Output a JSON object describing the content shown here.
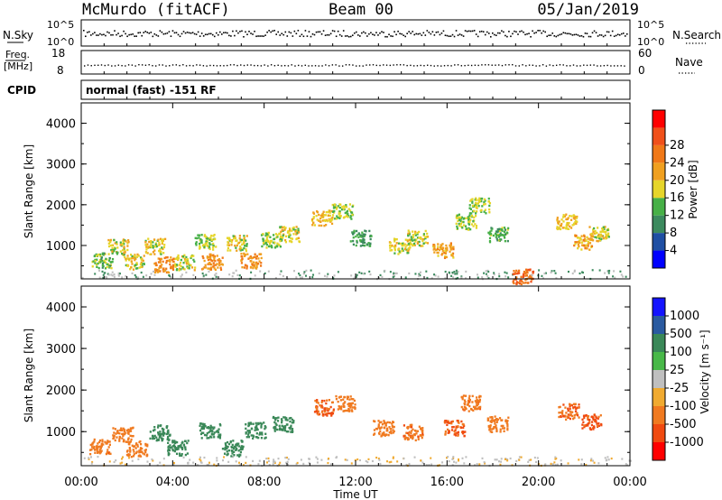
{
  "header": {
    "station": "McMurdo (fitACF)",
    "beam": "Beam 00",
    "date": "05/Jan/2019"
  },
  "strips": {
    "nsky_label": "N.Sky",
    "nsky_ticks": [
      "10^5",
      "10^0"
    ],
    "nsearch_label": "N.Search",
    "nsearch_ticks": [
      "10^5",
      "10^0"
    ],
    "freq_label": "Freq.",
    "freq_unit": "[MHz]",
    "freq_ticks": [
      "18",
      "8"
    ],
    "nave_label": "Nave",
    "nave_ticks": [
      "60",
      "0"
    ],
    "cpid_label": "CPID",
    "cpid_text": "normal (fast) -151 RF"
  },
  "colors": {
    "power": [
      "#0000ff",
      "#1f4fa3",
      "#3c8a5e",
      "#47b047",
      "#e6d52a",
      "#f0a020",
      "#f07818",
      "#f0501a",
      "#ff0000"
    ],
    "velocity": [
      "#ff0000",
      "#f04a10",
      "#f07a20",
      "#f0aa30",
      "#bfbfbf",
      "#48b848",
      "#3a8858",
      "#2a5aa0",
      "#1414ff"
    ],
    "ground": "#bfbfbf"
  },
  "chart_data": [
    {
      "type": "heatmap",
      "title": "",
      "xlabel": "",
      "ylabel": "Slant Range [km]",
      "xlim": [
        0,
        24
      ],
      "ylim": [
        180,
        4500
      ],
      "y_ticks": [
        "1000",
        "2000",
        "3000",
        "4000"
      ],
      "colorbar": {
        "label": "Power [dB]",
        "range": [
          0,
          30
        ],
        "ticks": [
          "4",
          "8",
          "12",
          "16",
          "20",
          "24",
          "28"
        ]
      },
      "echo_regions": [
        {
          "t": 0.9,
          "r": 650,
          "value": 14
        },
        {
          "t": 1.6,
          "r": 980,
          "value": 18
        },
        {
          "t": 2.3,
          "r": 620,
          "value": 18
        },
        {
          "t": 3.2,
          "r": 1000,
          "value": 18
        },
        {
          "t": 3.6,
          "r": 550,
          "value": 24
        },
        {
          "t": 4.5,
          "r": 600,
          "value": 18
        },
        {
          "t": 5.4,
          "r": 1100,
          "value": 16
        },
        {
          "t": 5.7,
          "r": 620,
          "value": 24
        },
        {
          "t": 6.8,
          "r": 1080,
          "value": 18
        },
        {
          "t": 7.4,
          "r": 640,
          "value": 24
        },
        {
          "t": 8.3,
          "r": 1150,
          "value": 16
        },
        {
          "t": 9.1,
          "r": 1300,
          "value": 18
        },
        {
          "t": 10.5,
          "r": 1700,
          "value": 20
        },
        {
          "t": 11.4,
          "r": 1850,
          "value": 16
        },
        {
          "t": 12.2,
          "r": 1200,
          "value": 12
        },
        {
          "t": 13.9,
          "r": 1000,
          "value": 18
        },
        {
          "t": 14.7,
          "r": 1200,
          "value": 18
        },
        {
          "t": 15.8,
          "r": 900,
          "value": 22
        },
        {
          "t": 16.8,
          "r": 1600,
          "value": 16
        },
        {
          "t": 17.4,
          "r": 2000,
          "value": 16
        },
        {
          "t": 18.2,
          "r": 1300,
          "value": 14
        },
        {
          "t": 21.2,
          "r": 1600,
          "value": 20
        },
        {
          "t": 21.9,
          "r": 1100,
          "value": 22
        },
        {
          "t": 22.6,
          "r": 1300,
          "value": 18
        },
        {
          "t": 19.3,
          "r": 260,
          "value": 28
        }
      ]
    },
    {
      "type": "heatmap",
      "title": "",
      "xlabel": "Time UT",
      "ylabel": "Slant Range [km]",
      "xlim": [
        0,
        24
      ],
      "ylim": [
        180,
        4500
      ],
      "x_ticks": [
        "00:00",
        "04:00",
        "08:00",
        "12:00",
        "16:00",
        "20:00",
        "00:00"
      ],
      "y_ticks": [
        "1000",
        "2000",
        "3000",
        "4000"
      ],
      "colorbar": {
        "label": "Velocity [m s⁻¹]",
        "ticks": [
          "-1000",
          "-500",
          "-100",
          "-25",
          "25",
          "100",
          "500",
          "1000"
        ]
      },
      "echo_regions": [
        {
          "t": 0.8,
          "r": 650,
          "value": -400
        },
        {
          "t": 1.8,
          "r": 950,
          "value": -300
        },
        {
          "t": 2.4,
          "r": 600,
          "value": -200
        },
        {
          "t": 3.4,
          "r": 1000,
          "value": 200
        },
        {
          "t": 4.2,
          "r": 620,
          "value": 200
        },
        {
          "t": 5.6,
          "r": 1050,
          "value": 200
        },
        {
          "t": 6.6,
          "r": 620,
          "value": 200
        },
        {
          "t": 7.6,
          "r": 1050,
          "value": 200
        },
        {
          "t": 8.8,
          "r": 1200,
          "value": 200
        },
        {
          "t": 10.6,
          "r": 1600,
          "value": -500
        },
        {
          "t": 11.5,
          "r": 1700,
          "value": -300
        },
        {
          "t": 13.2,
          "r": 1100,
          "value": -300
        },
        {
          "t": 14.5,
          "r": 1000,
          "value": -400
        },
        {
          "t": 16.3,
          "r": 1100,
          "value": -500
        },
        {
          "t": 17.0,
          "r": 1700,
          "value": -400
        },
        {
          "t": 18.2,
          "r": 1200,
          "value": -300
        },
        {
          "t": 21.3,
          "r": 1500,
          "value": -500
        },
        {
          "t": 22.3,
          "r": 1250,
          "value": -600
        }
      ]
    }
  ]
}
